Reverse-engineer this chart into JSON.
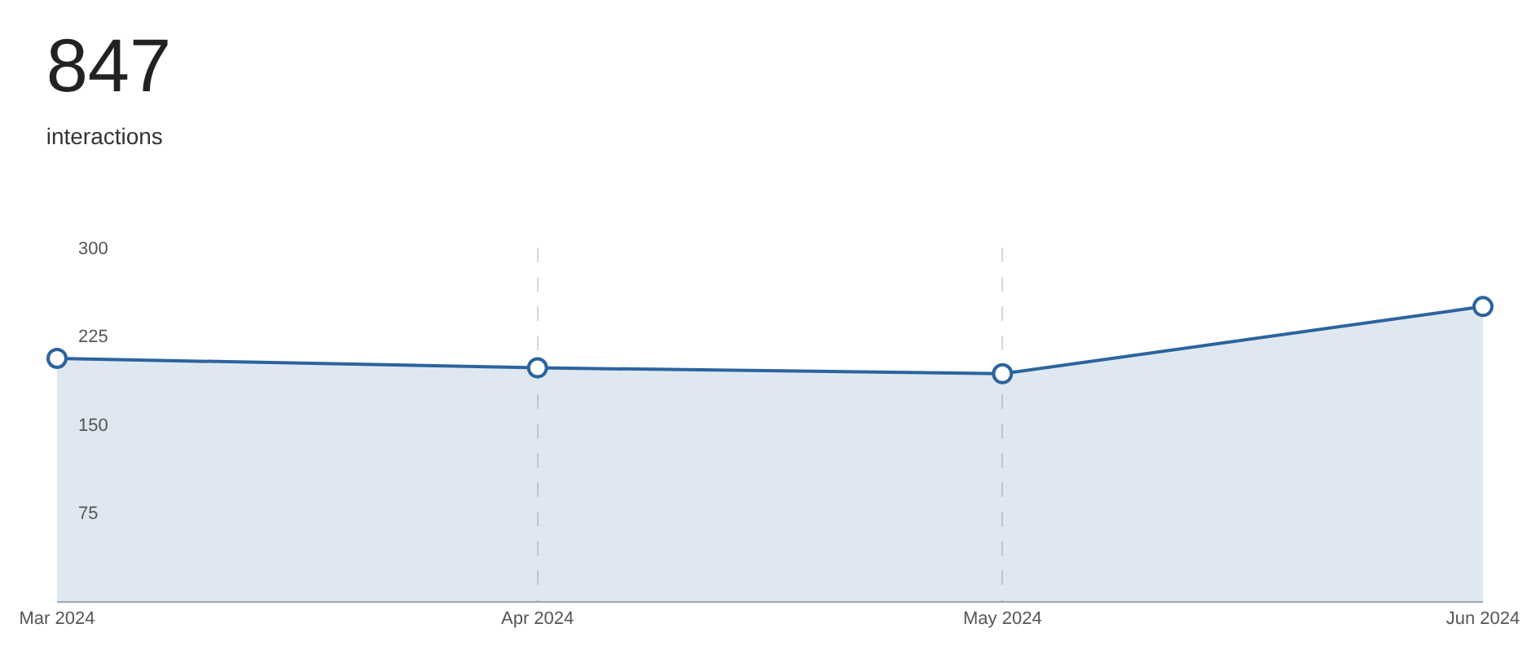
{
  "chart_data": {
    "type": "area",
    "title": "847",
    "subtitle": "interactions",
    "x": [
      "2024-03",
      "2024-04",
      "2024-05",
      "2024-06"
    ],
    "series": [
      {
        "color": "#2b649e",
        "values": [
          206,
          198,
          193,
          250
        ]
      }
    ],
    "xticks": [
      {
        "value": "2024-03",
        "label": "Mar 2024"
      },
      {
        "value": "2024-04",
        "label": "Apr 2024"
      },
      {
        "value": "2024-05",
        "label": "May 2024"
      },
      {
        "value": "2024-06",
        "label": "Jun 2024"
      }
    ],
    "xlim": [
      "2024-03",
      "2024-06"
    ],
    "ylim": [
      0,
      300
    ],
    "yticks": [
      75,
      150,
      225,
      300
    ],
    "grid": "x",
    "marker": "circle"
  }
}
